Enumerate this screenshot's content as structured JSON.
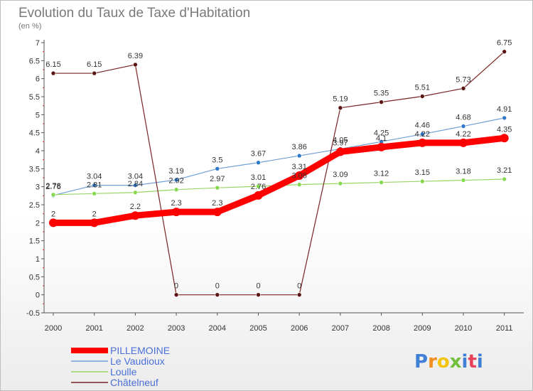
{
  "chart_data": {
    "type": "line",
    "title": "Evolution du Taux de Taxe d'Habitation",
    "subtitle": "(en %)",
    "x": [
      "2000",
      "2001",
      "2002",
      "2003",
      "2004",
      "2005",
      "2006",
      "2007",
      "2008",
      "2009",
      "2010",
      "2011"
    ],
    "ylim": [
      -0.5,
      7
    ],
    "y_ticks": [
      "-0.5",
      "0",
      "0.5",
      "1",
      "1.5",
      "2",
      "2.5",
      "3",
      "3.5",
      "4",
      "4.5",
      "5",
      "5.5",
      "6",
      "6.5",
      "7"
    ],
    "grid": false,
    "legend_position": "bottom-left",
    "series": [
      {
        "name": "PILLEMOINE",
        "color": "#ff0000",
        "values": [
          2,
          2,
          2.2,
          2.3,
          2.3,
          2.76,
          3.31,
          3.97,
          4.1,
          4.22,
          4.22,
          4.35
        ],
        "labels": [
          "2",
          "2",
          "2.2",
          "2.3",
          "2.3",
          "2.76",
          "3.31",
          "3.97",
          "4.1",
          "4.22",
          "4.22",
          "4.35"
        ]
      },
      {
        "name": "Le Vaudioux",
        "color": "#6f9fd6",
        "values": [
          2.76,
          3.04,
          3.04,
          3.19,
          3.5,
          3.67,
          3.86,
          4.05,
          4.25,
          4.46,
          4.68,
          4.91
        ],
        "labels": [
          "2.76",
          "3.04",
          "3.04",
          "3.19",
          "3.5",
          "3.67",
          "3.86",
          "4.05",
          "4.25",
          "4.46",
          "4.68",
          "4.91"
        ]
      },
      {
        "name": "Loulle",
        "color": "#9ad466",
        "values": [
          2.78,
          2.81,
          2.84,
          2.92,
          2.97,
          3.01,
          3.06,
          3.09,
          3.12,
          3.15,
          3.18,
          3.21
        ],
        "labels": [
          "2.78",
          "2.81",
          "2.84",
          "2.92",
          "2.97",
          "3.01",
          "3.06",
          "3.09",
          "3.12",
          "3.15",
          "3.18",
          "3.21"
        ]
      },
      {
        "name": "Châtelneuf",
        "color": "#7a2323",
        "values": [
          6.15,
          6.15,
          6.39,
          0,
          0,
          0,
          0,
          5.19,
          5.35,
          5.51,
          5.73,
          6.75
        ],
        "labels": [
          "6.15",
          "6.15",
          "6.39",
          "0",
          "0",
          "0",
          "0",
          "5.19",
          "5.35",
          "5.51",
          "5.73",
          "6.75"
        ]
      }
    ]
  },
  "logo": {
    "text": "Proxiti",
    "colors": [
      "#3f7fd6",
      "#f28e1c",
      "#f2c40a",
      "#6fbf3c",
      "#3f7fd6",
      "#e8435a",
      "#3f7fd6"
    ]
  }
}
